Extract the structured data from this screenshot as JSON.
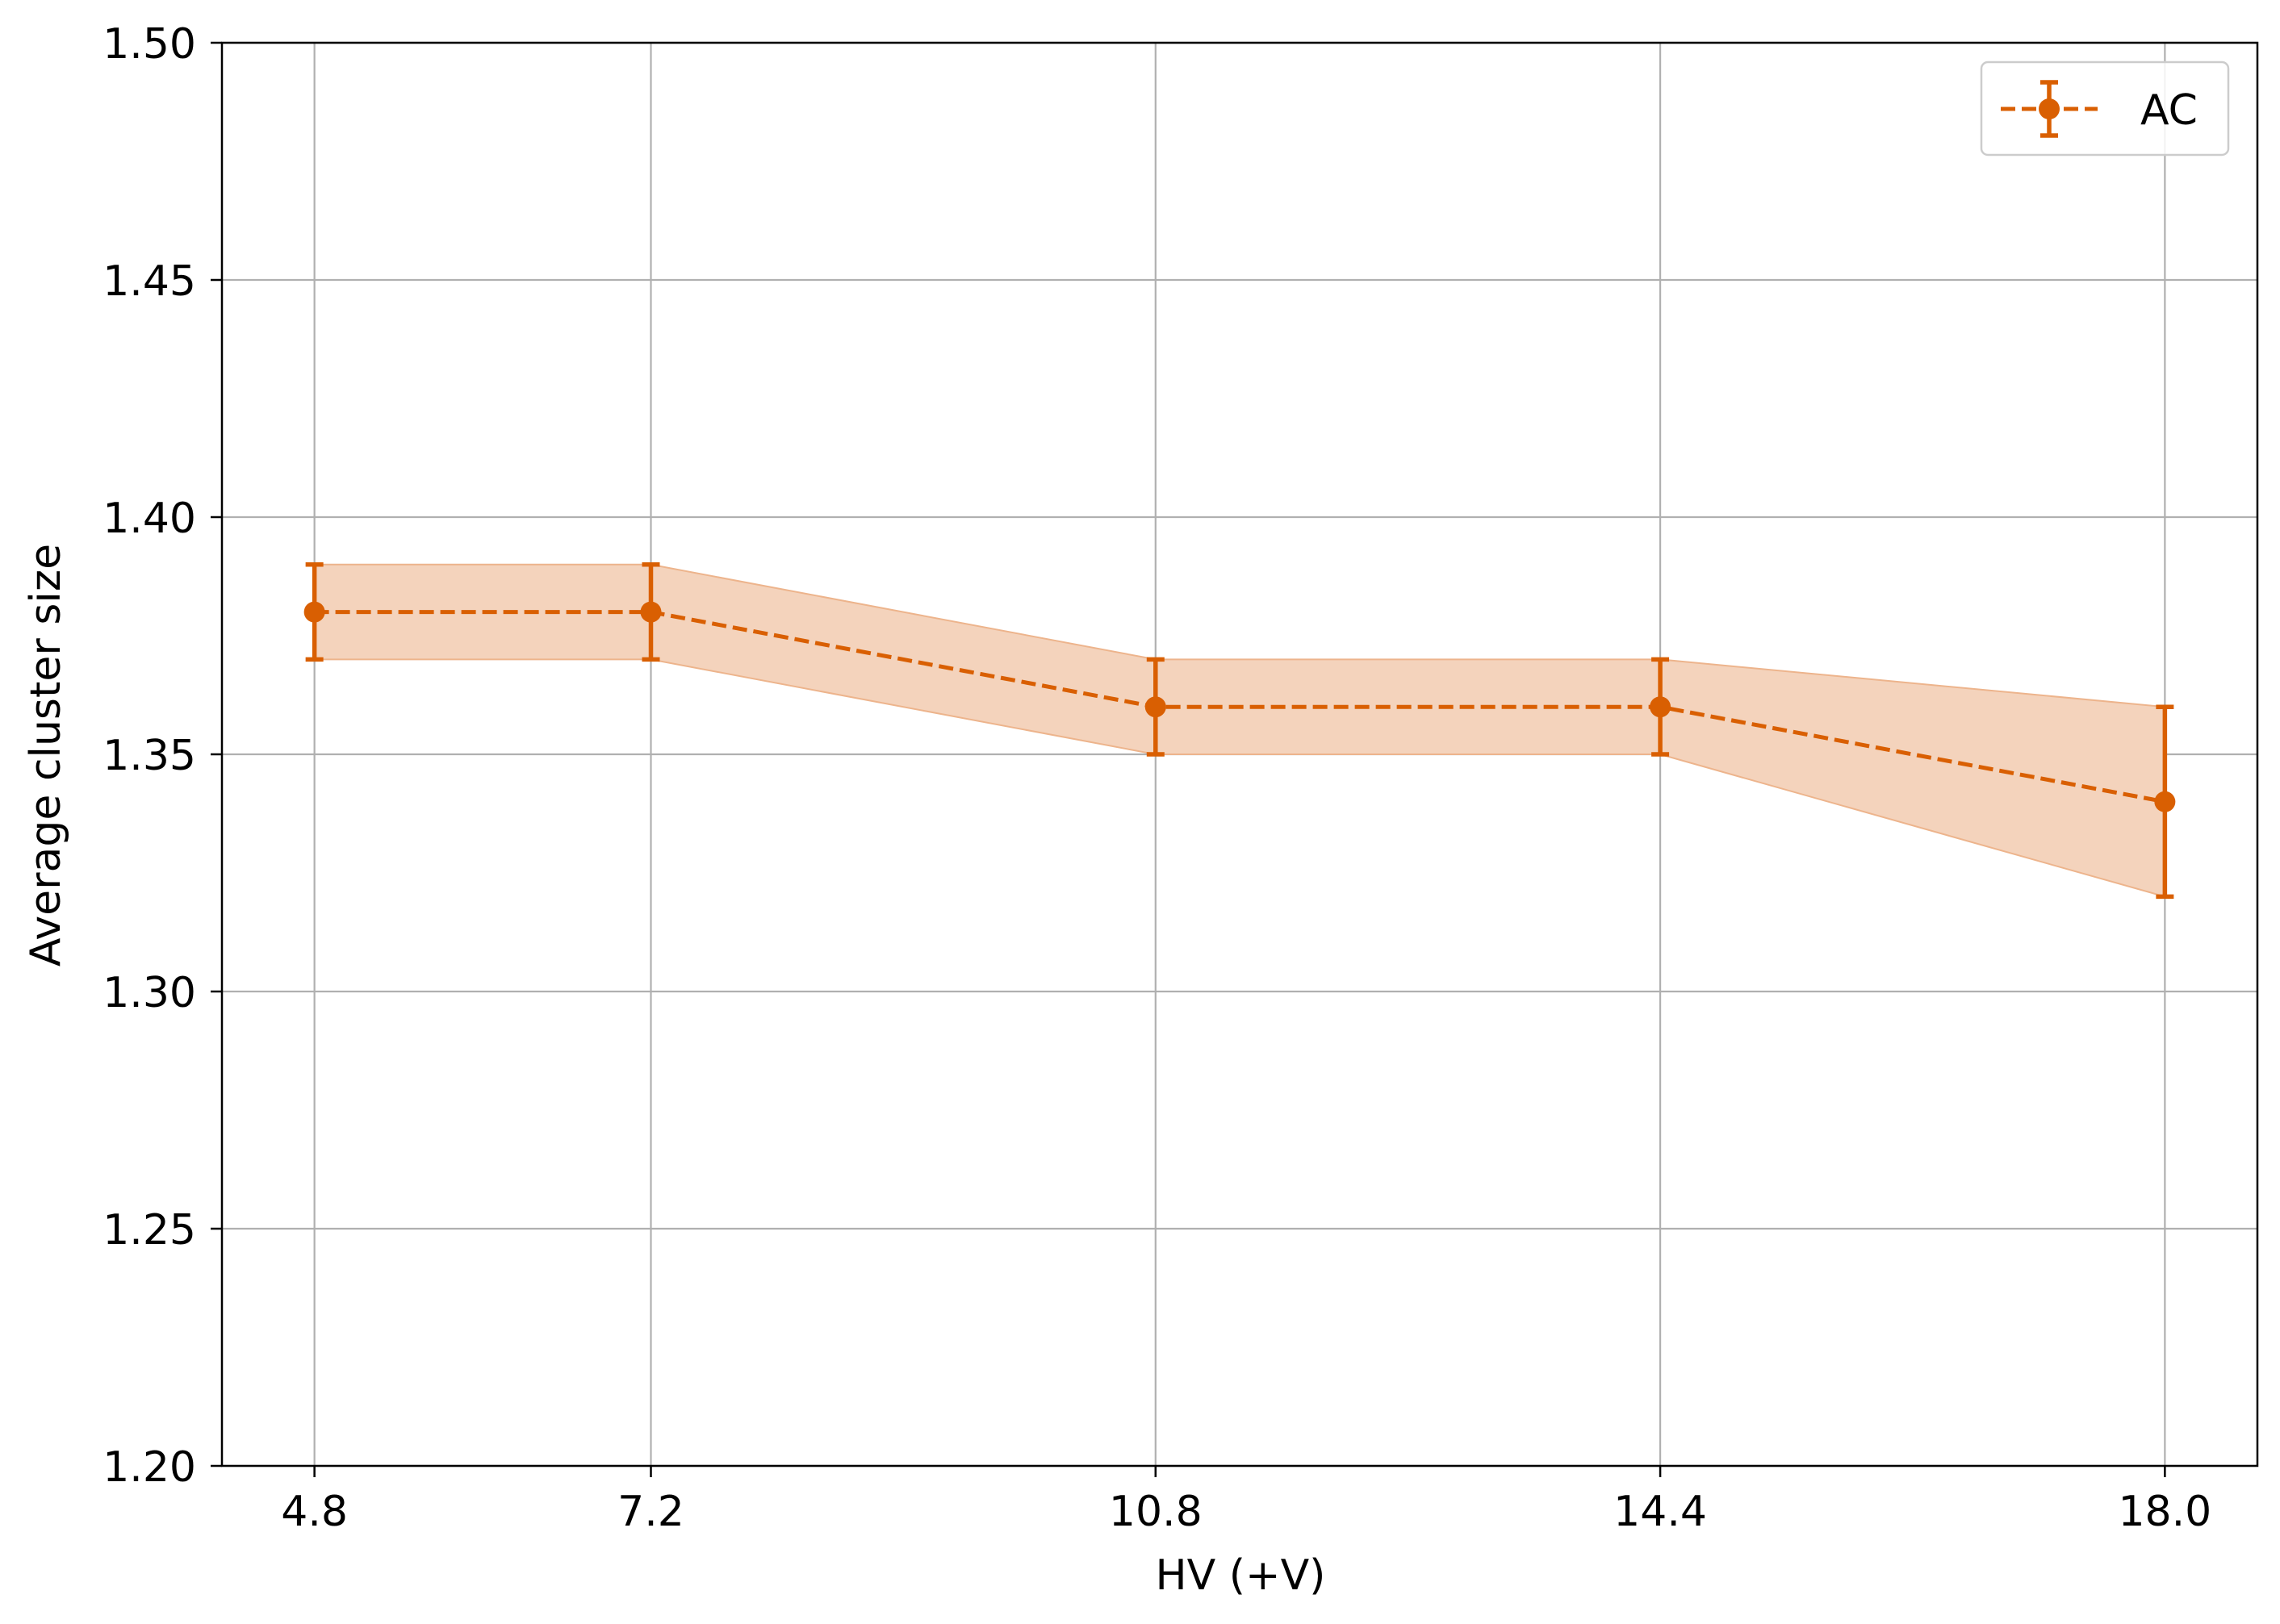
{
  "chart_data": {
    "type": "line",
    "title": "",
    "xlabel": "HV (+V)",
    "ylabel": "Average cluster size",
    "x": [
      4.8,
      7.2,
      10.8,
      14.4,
      18.0
    ],
    "x_tick_labels": [
      "4.8",
      "7.2",
      "10.8",
      "14.4",
      "18.0"
    ],
    "y_ticks": [
      1.2,
      1.25,
      1.3,
      1.35,
      1.4,
      1.45,
      1.5
    ],
    "y_tick_labels": [
      "1.20",
      "1.25",
      "1.30",
      "1.35",
      "1.40",
      "1.45",
      "1.50"
    ],
    "xlim": [
      4.14,
      18.66
    ],
    "ylim": [
      1.2,
      1.5
    ],
    "grid": true,
    "legend_position": "top-right",
    "series": [
      {
        "name": "AC",
        "values": [
          1.38,
          1.38,
          1.36,
          1.36,
          1.34
        ],
        "errors": [
          0.01,
          0.01,
          0.01,
          0.01,
          0.02
        ],
        "color": "#d95f02",
        "band_color": "#f4d3bc",
        "linestyle": "dashed",
        "marker": "circle"
      }
    ]
  }
}
